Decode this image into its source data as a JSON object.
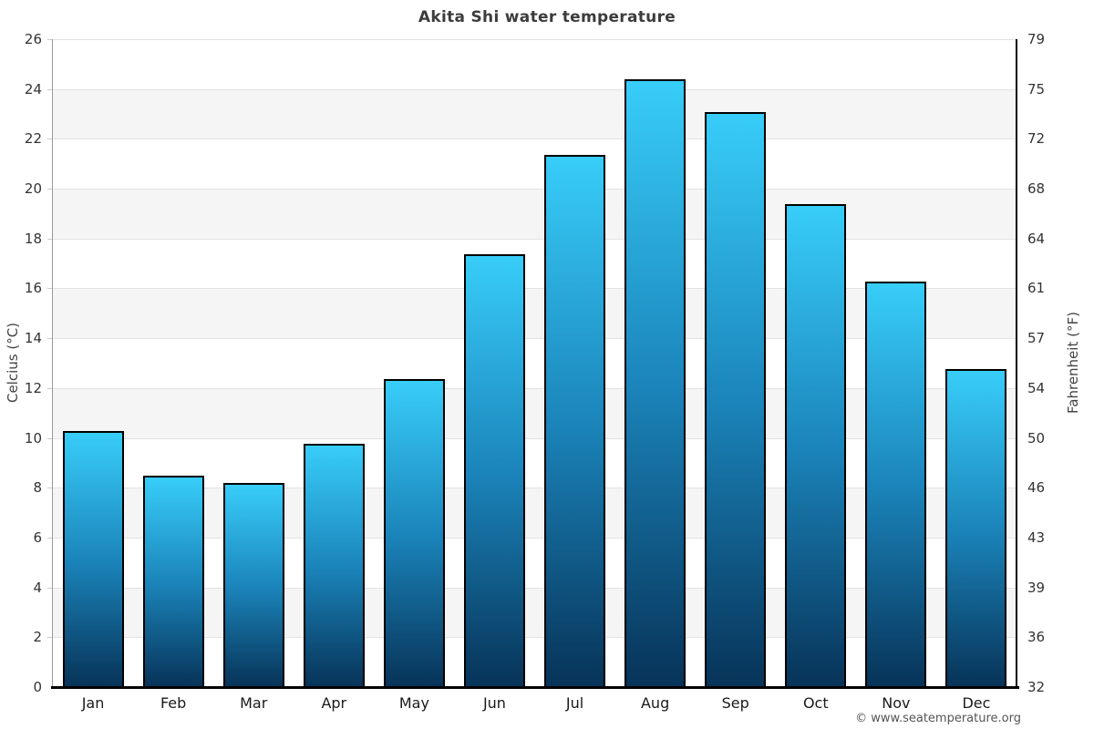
{
  "page": {
    "watermark": "© www.seatemperature.org"
  },
  "chart_data": {
    "type": "bar",
    "title": "Akita Shi water temperature",
    "categories": [
      "Jan",
      "Feb",
      "Mar",
      "Apr",
      "May",
      "Jun",
      "Jul",
      "Aug",
      "Sep",
      "Oct",
      "Nov",
      "Dec"
    ],
    "values": [
      10.2,
      8.4,
      8.1,
      9.7,
      12.3,
      17.3,
      21.3,
      24.3,
      23.0,
      19.3,
      16.2,
      12.7
    ],
    "xlabel": "",
    "ylabel_left": "Celcius (°C)",
    "ylabel_right": "Fahrenheit (°F)",
    "ylim": [
      0,
      26
    ],
    "ytick_step": 2,
    "yticks_left": [
      "0",
      "2",
      "4",
      "6",
      "8",
      "10",
      "12",
      "14",
      "16",
      "18",
      "20",
      "22",
      "24",
      "26"
    ],
    "yticks_right": [
      "32",
      "36",
      "39",
      "43",
      "46",
      "50",
      "54",
      "57",
      "61",
      "64",
      "68",
      "72",
      "75",
      "79"
    ],
    "legend": "none",
    "grid": "alternating horizontal bands every 2°C, light gray gridlines",
    "colors": {
      "bar_gradient_top": "#38cdf9",
      "bar_gradient_mid": "#1b85bb",
      "bar_gradient_bottom": "#073358",
      "bar_border": "#000000",
      "band_gray": "#f5f5f5",
      "gridline": "#e2e2e2",
      "axis_left_line": "#999999",
      "axis_black": "#000000",
      "title_text": "#3c3c3c",
      "tick_text": "#333333"
    }
  }
}
